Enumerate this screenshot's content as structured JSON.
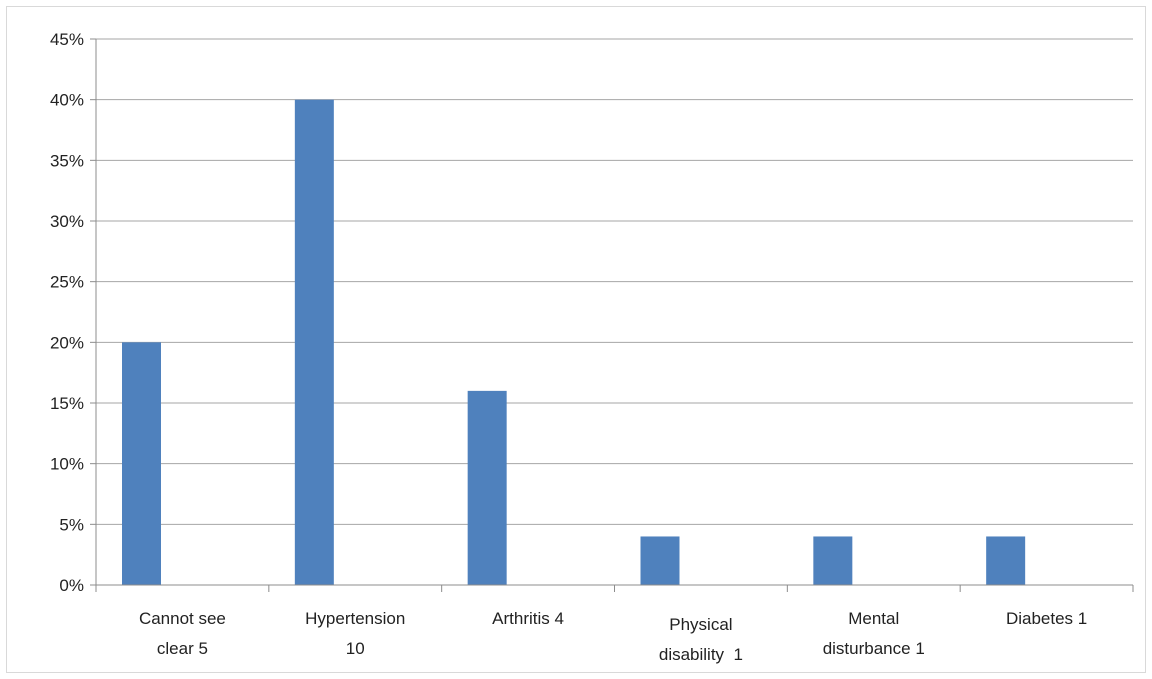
{
  "chart_data": {
    "type": "bar",
    "categories": [
      [
        "Cannot see",
        "clear 5"
      ],
      [
        "Hypertension",
        "10"
      ],
      [
        "Arthritis 4"
      ],
      [
        "Physical",
        "disability  1"
      ],
      [
        "Mental",
        "disturbance 1"
      ],
      [
        "Diabetes 1"
      ]
    ],
    "values": [
      20,
      40,
      16,
      4,
      4,
      4
    ],
    "ylim": [
      0,
      45
    ],
    "yticks": [
      "0%",
      "5%",
      "10%",
      "15%",
      "20%",
      "25%",
      "30%",
      "35%",
      "40%",
      "45%"
    ],
    "title": "",
    "xlabel": "",
    "ylabel": "",
    "grid": true,
    "bar_color": "#4f81bd",
    "grid_color": "#a6a6a6"
  }
}
